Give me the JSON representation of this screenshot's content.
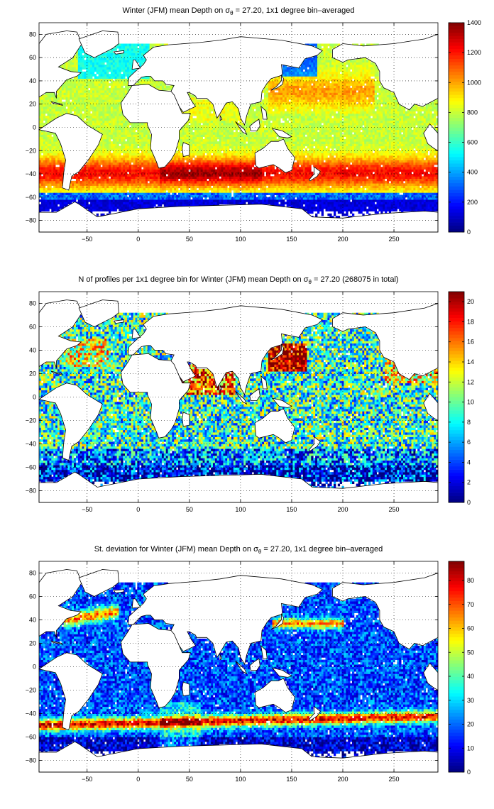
{
  "figure": {
    "colormap": "jet",
    "colors": {
      "land": "#ffffff",
      "coastline": "#000000",
      "grid": "#000000",
      "background": "#ffffff"
    }
  },
  "chart_data": [
    {
      "type": "heatmap",
      "title": {
        "pre": "Winter (JFM) mean Depth on σ",
        "sub": "θ",
        "post": " = 27.20, 1x1 degree bin–averaged"
      },
      "xlim": [
        -97,
        293
      ],
      "ylim": [
        -90,
        90
      ],
      "xticks": [
        -50,
        0,
        50,
        100,
        150,
        200,
        250
      ],
      "yticks": [
        -80,
        -60,
        -40,
        -20,
        0,
        20,
        40,
        60,
        80
      ],
      "grid": true,
      "colorbar": {
        "range": [
          0,
          1400
        ],
        "ticks": [
          0,
          200,
          400,
          600,
          800,
          1000,
          1200,
          1400
        ],
        "position": "right"
      },
      "field_description": "Depth of the isopycnal: ~800 in tropics and northern basins, deepening to 1000-1400 near 40S, shallow (<200) south of 55S"
    },
    {
      "type": "heatmap",
      "title": {
        "pre": "N of profiles per 1x1 degree bin for Winter (JFM) mean Depth on σ",
        "sub": "θ",
        "post": " = 27.20 (268075 in total)"
      },
      "xlim": [
        -97,
        293
      ],
      "ylim": [
        -90,
        90
      ],
      "xticks": [
        -50,
        0,
        50,
        100,
        150,
        200,
        250
      ],
      "yticks": [
        -80,
        -60,
        -40,
        -20,
        0,
        20,
        40,
        60,
        80
      ],
      "grid": true,
      "colorbar": {
        "range": [
          0,
          21
        ],
        "ticks": [
          0,
          2,
          4,
          6,
          8,
          10,
          12,
          14,
          16,
          18,
          20
        ],
        "position": "right"
      },
      "field_description": "Profile counts, high (>20) around Japan/Kuroshio and Arabian Sea, moderate elsewhere, low in the Southern Ocean"
    },
    {
      "type": "heatmap",
      "title": {
        "pre": "St. deviation for Winter (JFM) mean Depth on σ",
        "sub": "θ",
        "post": " = 27.20, 1x1 degree bin–averaged"
      },
      "xlim": [
        -97,
        293
      ],
      "ylim": [
        -90,
        90
      ],
      "xticks": [
        -50,
        0,
        50,
        100,
        150,
        200,
        250
      ],
      "yticks": [
        -80,
        -60,
        -40,
        -20,
        0,
        20,
        40,
        60,
        80
      ],
      "grid": true,
      "colorbar": {
        "range": [
          0,
          88
        ],
        "ticks": [
          0,
          10,
          20,
          30,
          40,
          50,
          60,
          70,
          80
        ],
        "position": "right"
      },
      "field_description": "Standard deviation: high (60-90) along the Gulf Stream, Kuroshio and Antarctic Circumpolar Current near 45-50S, low (10-30) elsewhere"
    }
  ]
}
